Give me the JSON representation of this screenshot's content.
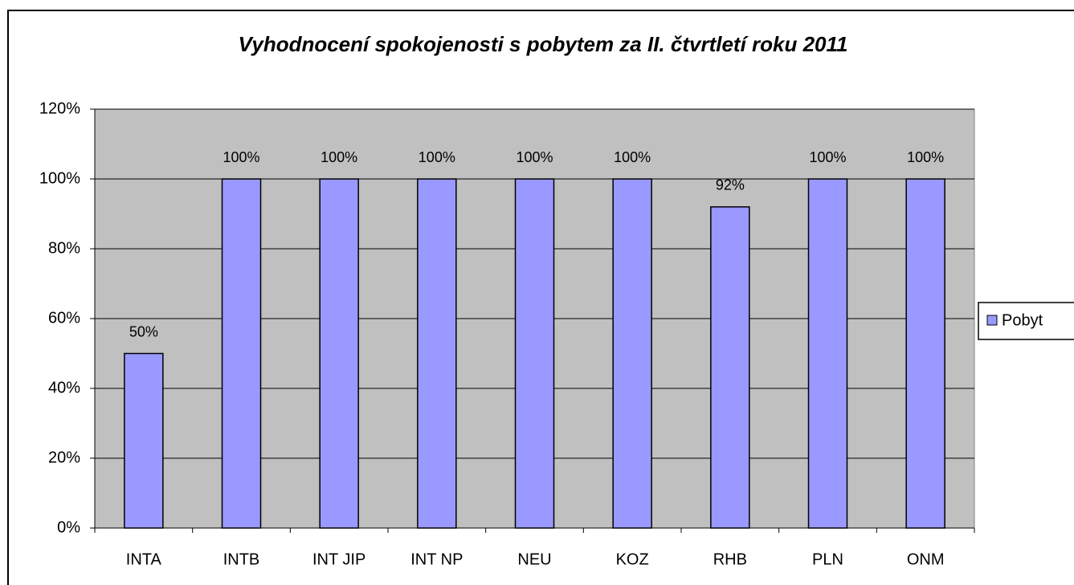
{
  "chart_data": {
    "type": "bar",
    "title": "Vyhodnocení spokojenosti s pobytem za II. čtvrtletí roku 2011",
    "categories": [
      "INTA",
      "INTB",
      "INT JIP",
      "INT NP",
      "NEU",
      "KOZ",
      "RHB",
      "PLN",
      "ONM"
    ],
    "series": [
      {
        "name": "Pobyt",
        "color": "#9999ff",
        "values": [
          50,
          100,
          100,
          100,
          100,
          100,
          92,
          100,
          100
        ],
        "value_labels": [
          "50%",
          "100%",
          "100%",
          "100%",
          "100%",
          "100%",
          "92%",
          "100%",
          "100%"
        ]
      }
    ],
    "ylim": [
      0,
      120
    ],
    "yticks": [
      {
        "value": 0,
        "label": "0%"
      },
      {
        "value": 20,
        "label": "20%"
      },
      {
        "value": 40,
        "label": "40%"
      },
      {
        "value": 60,
        "label": "60%"
      },
      {
        "value": 80,
        "label": "80%"
      },
      {
        "value": 100,
        "label": "100%"
      },
      {
        "value": 120,
        "label": "120%"
      }
    ],
    "grid": true,
    "legend": "right",
    "plot_background": "#c0c0c0"
  }
}
